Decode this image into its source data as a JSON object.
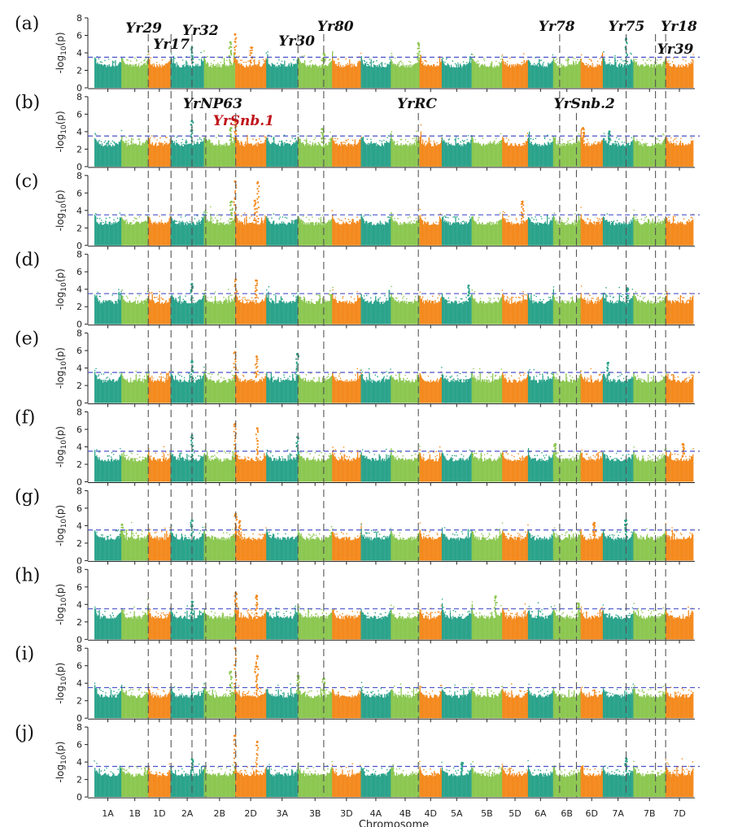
{
  "chart_data": {
    "type": "scatter",
    "subtype": "manhattan",
    "xlabel": "Chromosome",
    "ylabel_prefix": "-log",
    "ylabel_sub": "10",
    "ylabel_suffix": "(p)",
    "ylim": [
      0,
      8
    ],
    "yticks": [
      0,
      2,
      4,
      6,
      8
    ],
    "threshold": 3.5,
    "colors": {
      "teal": "#2ba38b",
      "light_green": "#8cc751",
      "orange": "#f48a1f",
      "threshold_line": "#4a52c8",
      "gene_line": "#555555",
      "highlight": "#c0141a"
    },
    "chromosomes": [
      {
        "name": "1A",
        "start": 0.0,
        "end": 0.045,
        "color": "teal"
      },
      {
        "name": "1B",
        "start": 0.045,
        "end": 0.09,
        "color": "light_green"
      },
      {
        "name": "1D",
        "start": 0.09,
        "end": 0.127,
        "color": "orange"
      },
      {
        "name": "2A",
        "start": 0.127,
        "end": 0.183,
        "color": "teal"
      },
      {
        "name": "2B",
        "start": 0.183,
        "end": 0.235,
        "color": "light_green"
      },
      {
        "name": "2D",
        "start": 0.235,
        "end": 0.287,
        "color": "orange"
      },
      {
        "name": "3A",
        "start": 0.287,
        "end": 0.34,
        "color": "teal"
      },
      {
        "name": "3B",
        "start": 0.34,
        "end": 0.397,
        "color": "light_green"
      },
      {
        "name": "3D",
        "start": 0.397,
        "end": 0.445,
        "color": "orange"
      },
      {
        "name": "4A",
        "start": 0.445,
        "end": 0.495,
        "color": "teal"
      },
      {
        "name": "4B",
        "start": 0.495,
        "end": 0.543,
        "color": "light_green"
      },
      {
        "name": "4D",
        "start": 0.543,
        "end": 0.58,
        "color": "orange"
      },
      {
        "name": "5A",
        "start": 0.58,
        "end": 0.63,
        "color": "teal"
      },
      {
        "name": "5B",
        "start": 0.63,
        "end": 0.681,
        "color": "light_green"
      },
      {
        "name": "5D",
        "start": 0.681,
        "end": 0.724,
        "color": "orange"
      },
      {
        "name": "6A",
        "start": 0.724,
        "end": 0.766,
        "color": "teal"
      },
      {
        "name": "6B",
        "start": 0.766,
        "end": 0.812,
        "color": "light_green"
      },
      {
        "name": "6D",
        "start": 0.812,
        "end": 0.849,
        "color": "orange"
      },
      {
        "name": "7A",
        "start": 0.849,
        "end": 0.9,
        "color": "teal"
      },
      {
        "name": "7B",
        "start": 0.9,
        "end": 0.954,
        "color": "light_green"
      },
      {
        "name": "7D",
        "start": 0.954,
        "end": 1.0,
        "color": "orange"
      }
    ],
    "genes": [
      {
        "name": "Yr29",
        "pos": 0.09,
        "row": "a"
      },
      {
        "name": "Yr17",
        "pos": 0.128,
        "row": "a"
      },
      {
        "name": "Yr32",
        "pos": 0.163,
        "row": "a"
      },
      {
        "name": "YrNP63",
        "pos": 0.186,
        "row": "b"
      },
      {
        "name": "YrSnb.1",
        "pos": 0.236,
        "row": "b",
        "highlight": true
      },
      {
        "name": "Yr30",
        "pos": 0.34,
        "row": "a"
      },
      {
        "name": "Yr80",
        "pos": 0.383,
        "row": "a"
      },
      {
        "name": "YrRC",
        "pos": 0.541,
        "row": "b"
      },
      {
        "name": "Yr78",
        "pos": 0.777,
        "row": "a"
      },
      {
        "name": "YrSnb.2",
        "pos": 0.805,
        "row": "b"
      },
      {
        "name": "Yr75",
        "pos": 0.888,
        "row": "a"
      },
      {
        "name": "Yr39",
        "pos": 0.937,
        "row": "a"
      },
      {
        "name": "Yr18",
        "pos": 0.954,
        "row": "a"
      }
    ],
    "panels": [
      {
        "label": "(a)",
        "peaks": [
          {
            "x": 0.235,
            "y": 6.1
          },
          {
            "x": 0.227,
            "y": 5.2
          },
          {
            "x": 0.163,
            "y": 4.6
          },
          {
            "x": 0.262,
            "y": 4.6
          },
          {
            "x": 0.383,
            "y": 3.9
          },
          {
            "x": 0.888,
            "y": 5.6
          },
          {
            "x": 0.541,
            "y": 5.1
          }
        ]
      },
      {
        "label": "(b)",
        "peaks": [
          {
            "x": 0.163,
            "y": 5.2
          },
          {
            "x": 0.236,
            "y": 5.3
          },
          {
            "x": 0.228,
            "y": 4.4
          },
          {
            "x": 0.381,
            "y": 4.3
          },
          {
            "x": 0.816,
            "y": 4.4
          },
          {
            "x": 0.86,
            "y": 4.0
          }
        ]
      },
      {
        "label": "(c)",
        "peaks": [
          {
            "x": 0.235,
            "y": 7.3
          },
          {
            "x": 0.273,
            "y": 7.2
          },
          {
            "x": 0.268,
            "y": 5.1
          },
          {
            "x": 0.715,
            "y": 5.0
          },
          {
            "x": 0.229,
            "y": 5.0
          }
        ]
      },
      {
        "label": "(d)",
        "peaks": [
          {
            "x": 0.236,
            "y": 5.1
          },
          {
            "x": 0.27,
            "y": 5.0
          },
          {
            "x": 0.163,
            "y": 4.6
          },
          {
            "x": 0.625,
            "y": 4.4
          },
          {
            "x": 0.89,
            "y": 4.1
          }
        ]
      },
      {
        "label": "(e)",
        "peaks": [
          {
            "x": 0.235,
            "y": 5.8
          },
          {
            "x": 0.271,
            "y": 5.3
          },
          {
            "x": 0.339,
            "y": 5.6
          },
          {
            "x": 0.163,
            "y": 4.8
          },
          {
            "x": 0.858,
            "y": 4.6
          }
        ]
      },
      {
        "label": "(f)",
        "peaks": [
          {
            "x": 0.235,
            "y": 6.6
          },
          {
            "x": 0.272,
            "y": 6.1
          },
          {
            "x": 0.163,
            "y": 5.3
          },
          {
            "x": 0.339,
            "y": 5.1
          },
          {
            "x": 0.77,
            "y": 4.3
          },
          {
            "x": 0.983,
            "y": 4.3
          }
        ]
      },
      {
        "label": "(g)",
        "peaks": [
          {
            "x": 0.236,
            "y": 5.3
          },
          {
            "x": 0.163,
            "y": 4.6
          },
          {
            "x": 0.243,
            "y": 4.5
          },
          {
            "x": 0.888,
            "y": 4.6
          },
          {
            "x": 0.835,
            "y": 4.3
          },
          {
            "x": 0.046,
            "y": 4.1
          }
        ]
      },
      {
        "label": "(h)",
        "peaks": [
          {
            "x": 0.236,
            "y": 5.3
          },
          {
            "x": 0.271,
            "y": 5.0
          },
          {
            "x": 0.67,
            "y": 4.9
          },
          {
            "x": 0.163,
            "y": 4.3
          },
          {
            "x": 0.808,
            "y": 4.1
          }
        ]
      },
      {
        "label": "(i)",
        "peaks": [
          {
            "x": 0.235,
            "y": 8.0
          },
          {
            "x": 0.272,
            "y": 7.1
          },
          {
            "x": 0.228,
            "y": 5.3
          },
          {
            "x": 0.27,
            "y": 5.9
          },
          {
            "x": 0.34,
            "y": 4.8
          },
          {
            "x": 0.383,
            "y": 4.5
          }
        ]
      },
      {
        "label": "(j)",
        "peaks": [
          {
            "x": 0.235,
            "y": 7.0
          },
          {
            "x": 0.272,
            "y": 6.3
          },
          {
            "x": 0.163,
            "y": 4.3
          },
          {
            "x": 0.888,
            "y": 4.4
          },
          {
            "x": 0.614,
            "y": 3.9
          }
        ]
      }
    ]
  }
}
